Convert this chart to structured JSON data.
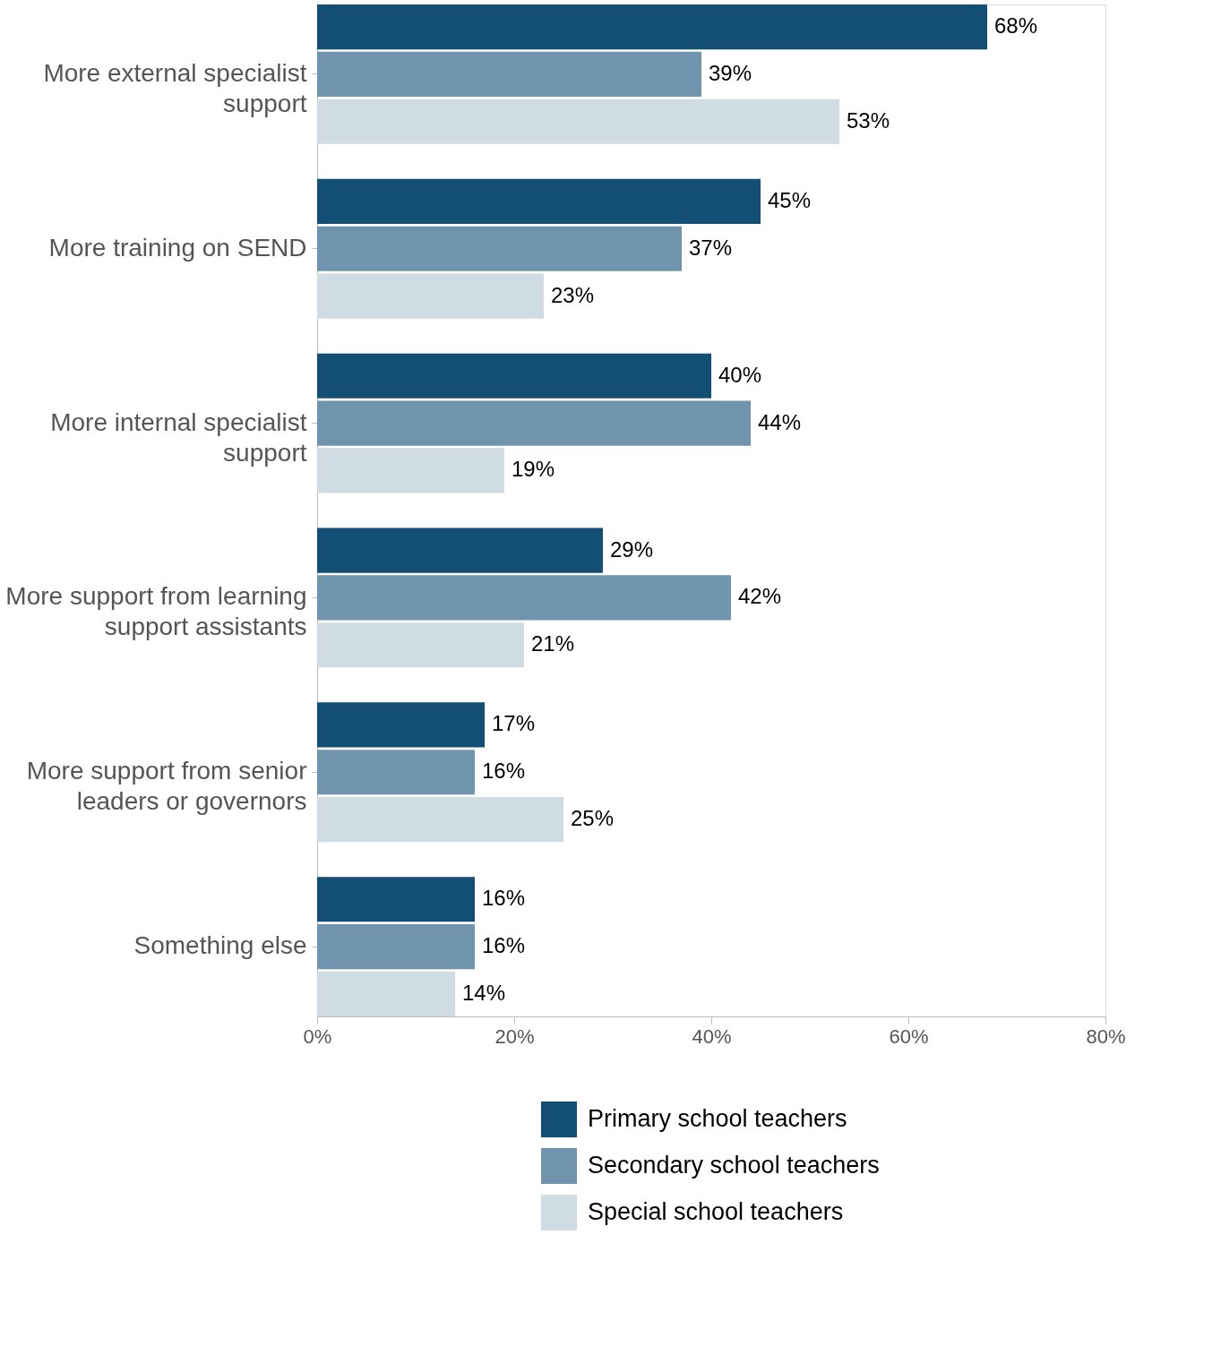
{
  "chart_data": {
    "type": "bar",
    "orientation": "horizontal",
    "categories": [
      "More external specialist support",
      "More training on SEND",
      "More internal specialist support",
      "More support from learning support assistants",
      "More support from senior leaders or governors",
      "Something else"
    ],
    "series": [
      {
        "name": "Primary school teachers",
        "color": "#134f74",
        "values": [
          68,
          45,
          40,
          29,
          17,
          16
        ],
        "value_labels": [
          "68%",
          "45%",
          "40%",
          "29%",
          "17%",
          "16%"
        ]
      },
      {
        "name": "Secondary school teachers",
        "color": "#7094ae",
        "values": [
          39,
          37,
          44,
          42,
          16,
          16
        ],
        "value_labels": [
          "39%",
          "37%",
          "44%",
          "42%",
          "16%",
          "16%"
        ]
      },
      {
        "name": "Special school teachers",
        "color": "#d0dce4",
        "values": [
          53,
          23,
          19,
          21,
          25,
          14
        ],
        "value_labels": [
          "53%",
          "23%",
          "19%",
          "21%",
          "25%",
          "14%"
        ]
      }
    ],
    "xlim": [
      0,
      80
    ],
    "xticks": [
      {
        "value": 0,
        "label": "0%"
      },
      {
        "value": 20,
        "label": "20%"
      },
      {
        "value": 40,
        "label": "40%"
      },
      {
        "value": 60,
        "label": "60%"
      },
      {
        "value": 80,
        "label": "80%"
      }
    ],
    "grid": false,
    "legend": "bottom"
  }
}
